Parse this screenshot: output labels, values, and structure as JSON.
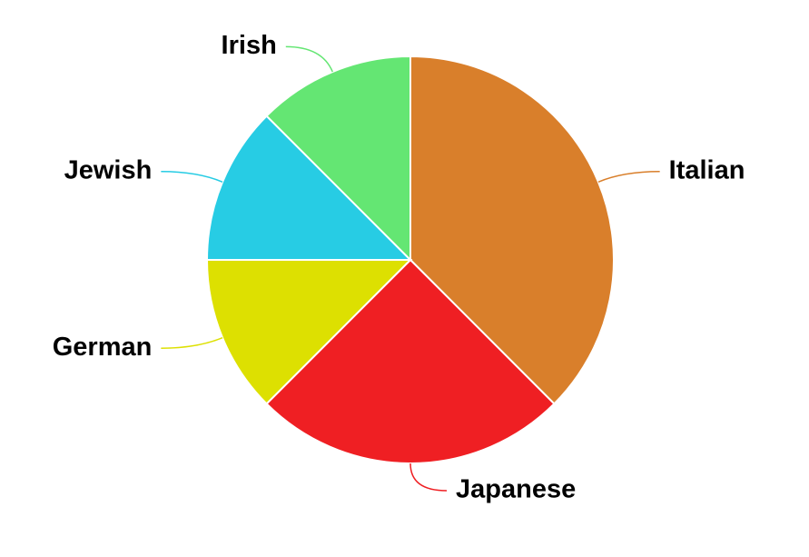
{
  "chart_data": {
    "type": "pie",
    "title": "",
    "slices": [
      {
        "label": "Italian",
        "value": 37.5,
        "color": "#d97f2b"
      },
      {
        "label": "Japanese",
        "value": 25.0,
        "color": "#ef1f23"
      },
      {
        "label": "German",
        "value": 12.5,
        "color": "#dde001"
      },
      {
        "label": "Jewish",
        "value": 12.5,
        "color": "#27cce4"
      },
      {
        "label": "Irish",
        "value": 12.5,
        "color": "#64e673"
      }
    ],
    "legend": "none",
    "labels": "outside-with-leader-lines"
  }
}
